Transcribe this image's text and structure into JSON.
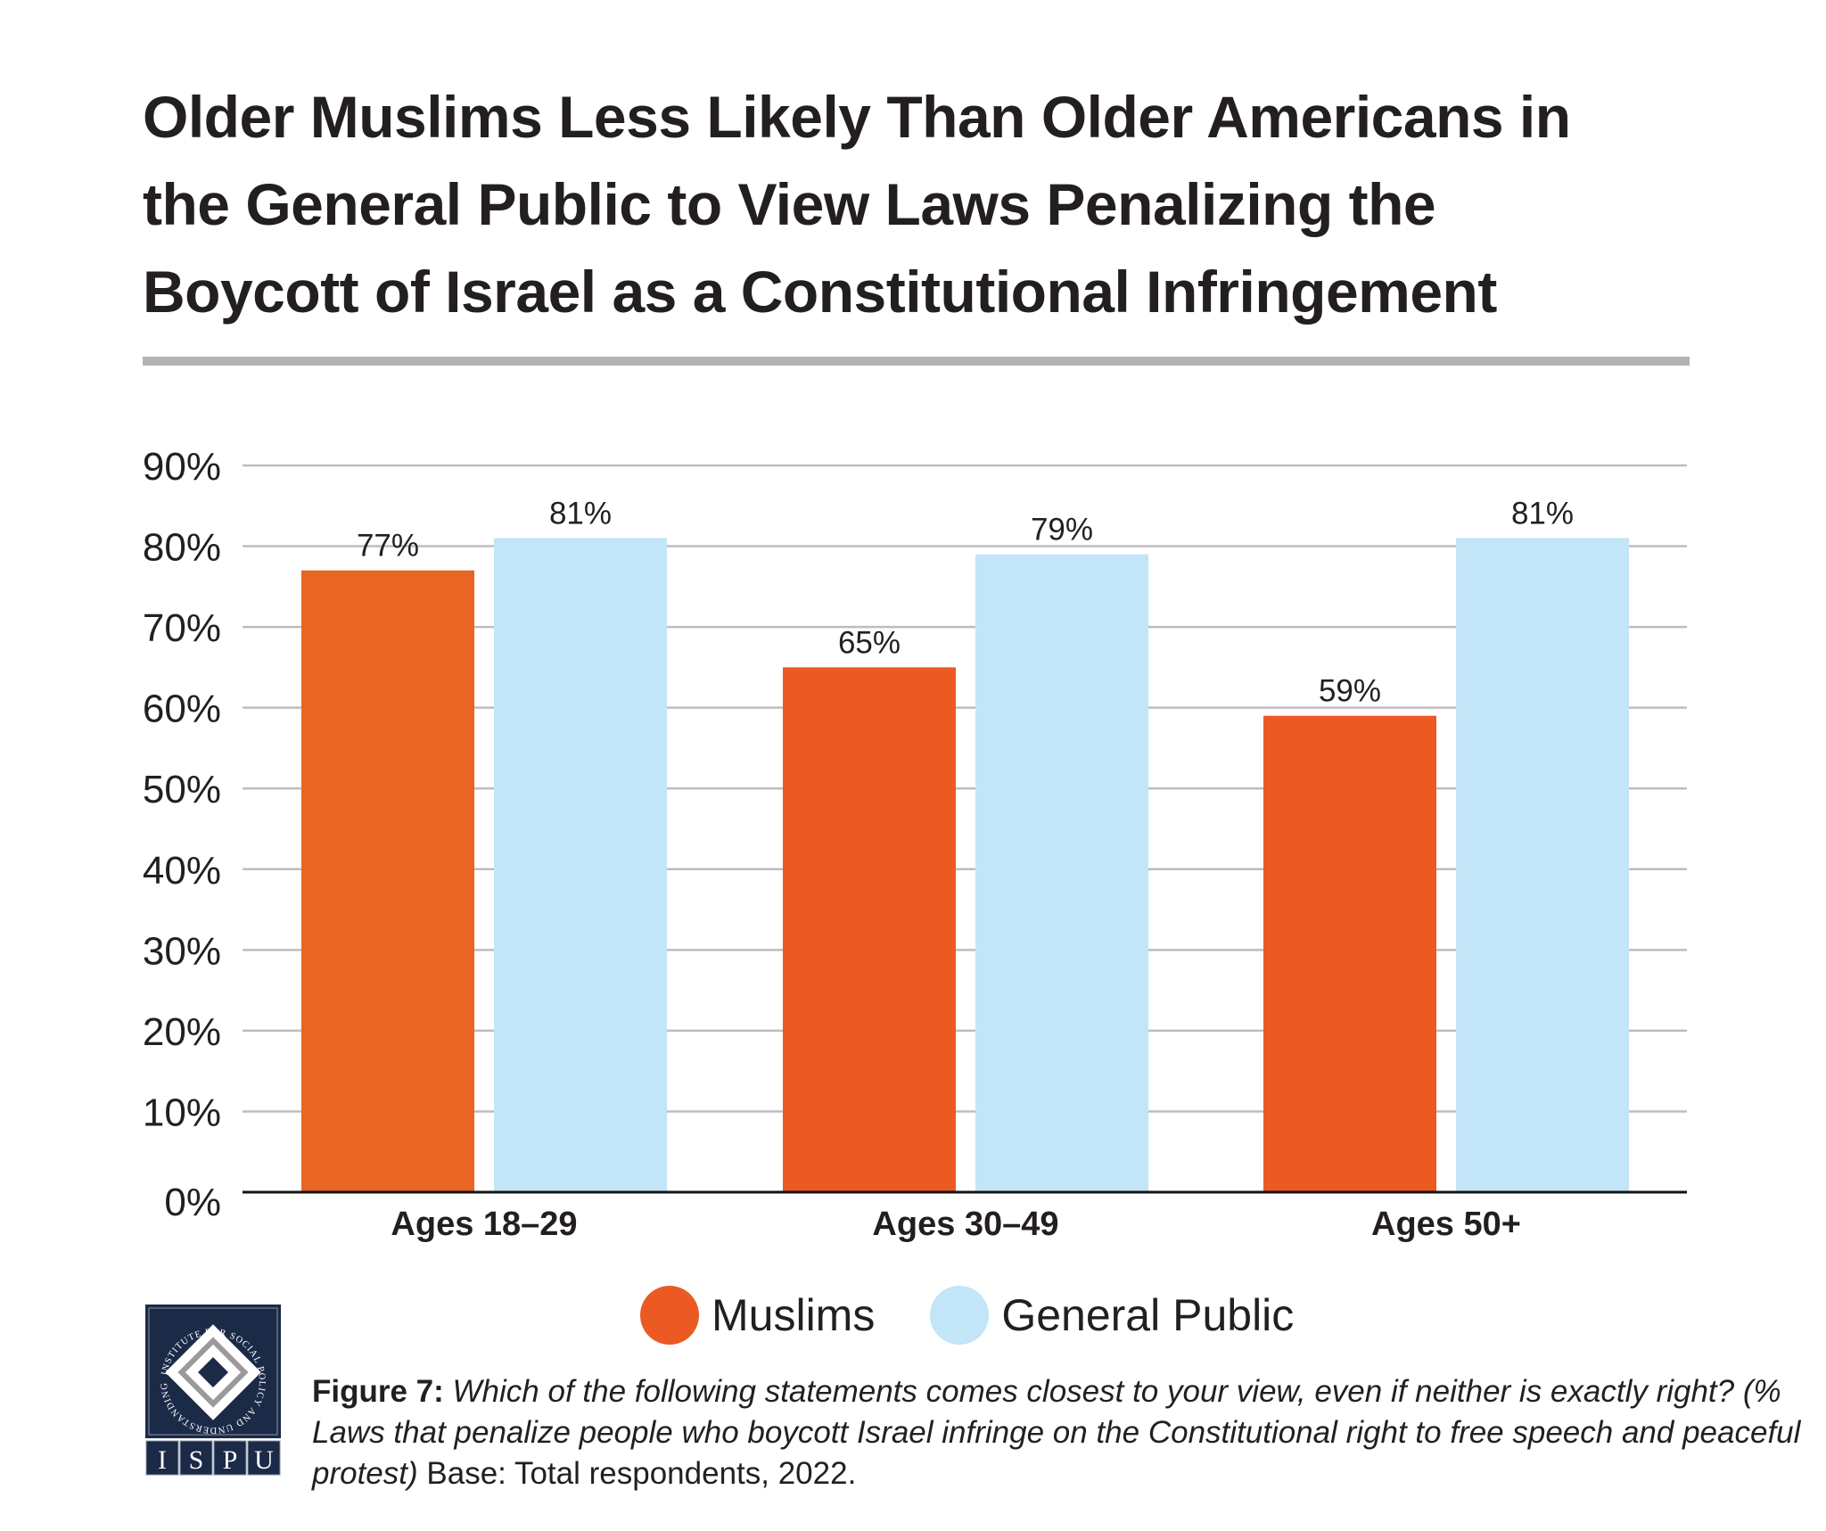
{
  "title_lines": [
    "Older Muslims Less Likely Than Older Americans in",
    "the General Public to View Laws Penalizing the",
    "Boycott of Israel as a Constitutional Infringement"
  ],
  "colors": {
    "muslims_group1": "#e86524",
    "muslims": "#ec5a24",
    "general_public": "#c2e5f7",
    "text": "#231f20",
    "gridline": "#bdbdbd",
    "rule": "#b3b3b3",
    "logo_navy": "#1b2a47"
  },
  "chart_data": {
    "type": "bar",
    "title": "Older Muslims Less Likely Than Older Americans in the General Public to View Laws Penalizing the Boycott of Israel as a Constitutional Infringement",
    "categories": [
      "Ages 18–29",
      "Ages 30–49",
      "Ages 50+"
    ],
    "series": [
      {
        "name": "Muslims",
        "values": [
          77,
          65,
          59
        ],
        "labels": [
          "77%",
          "65%",
          "59%"
        ]
      },
      {
        "name": "General Public",
        "values": [
          81,
          79,
          81
        ],
        "labels": [
          "81%",
          "79%",
          "81%"
        ]
      }
    ],
    "xlabel": "",
    "ylabel": "",
    "ylim": [
      0,
      90
    ],
    "yticks": [
      0,
      10,
      20,
      30,
      40,
      50,
      60,
      70,
      80,
      90
    ],
    "ytick_labels": [
      "0%",
      "10%",
      "20%",
      "30%",
      "40%",
      "50%",
      "60%",
      "70%",
      "80%",
      "90%"
    ],
    "grid": true,
    "legend_position": "bottom-center"
  },
  "legend": [
    {
      "label": "Muslims"
    },
    {
      "label": "General Public"
    }
  ],
  "logo": {
    "ring_text": "INSTITUTE FOR SOCIAL POLICY AND UNDERSTANDING",
    "letters": [
      "I",
      "S",
      "P",
      "U"
    ]
  },
  "caption": {
    "figure_label": "Figure 7:",
    "question": " Which of the following statements comes closest to your view, even if neither is exactly right? (% Laws that penalize people who boycott Israel infringe on the Constitutional right to free speech and peaceful protest)",
    "base": " Base: Total respondents, 2022."
  }
}
